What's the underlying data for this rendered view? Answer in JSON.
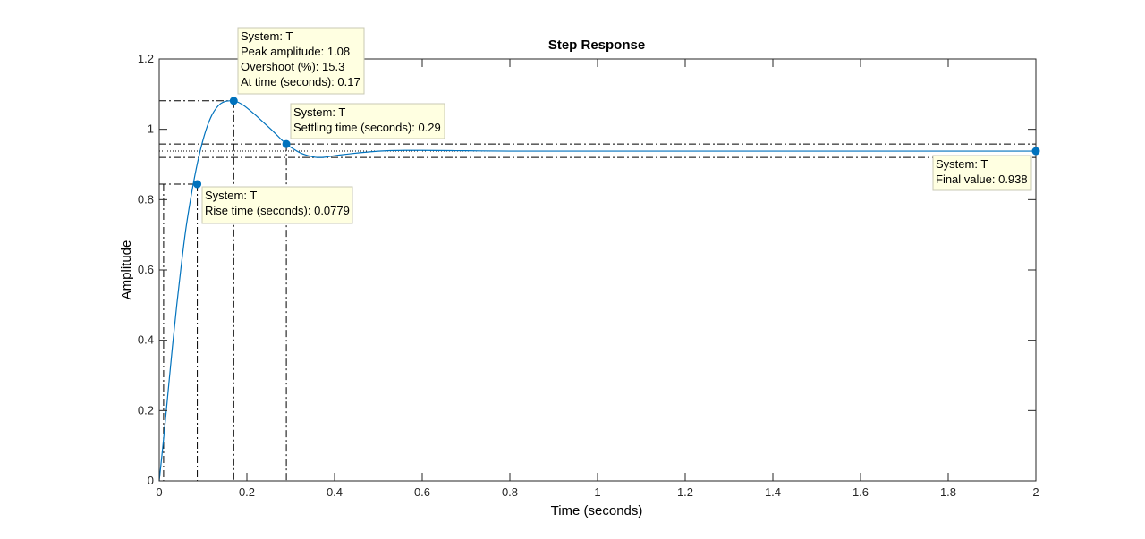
{
  "chart_data": {
    "type": "line",
    "title": "Step Response",
    "xlabel": "Time (seconds)",
    "ylabel": "Amplitude",
    "xlim": [
      0,
      2
    ],
    "ylim": [
      0,
      1.2
    ],
    "xticks": [
      0,
      0.2,
      0.4,
      0.6,
      0.8,
      1,
      1.2,
      1.4,
      1.6,
      1.8,
      2
    ],
    "xtick_labels": [
      "0",
      "0.2",
      "0.4",
      "0.6",
      "0.8",
      "1",
      "1.2",
      "1.4",
      "1.6",
      "1.8",
      "2"
    ],
    "yticks": [
      0,
      0.2,
      0.4,
      0.6,
      0.8,
      1,
      1.2
    ],
    "ytick_labels": [
      "0",
      "0.2",
      "0.4",
      "0.6",
      "0.8",
      "1",
      "1.2"
    ],
    "grid": false,
    "series": [
      {
        "color": "#0072BD",
        "x": [
          0,
          0.01,
          0.02,
          0.03,
          0.04,
          0.05,
          0.06,
          0.07,
          0.08,
          0.09,
          0.1,
          0.11,
          0.12,
          0.13,
          0.14,
          0.15,
          0.16,
          0.17,
          0.18,
          0.19,
          0.2,
          0.22,
          0.24,
          0.26,
          0.28,
          0.29,
          0.3,
          0.32,
          0.34,
          0.36,
          0.38,
          0.4,
          0.44,
          0.48,
          0.52,
          0.56,
          0.6,
          0.7,
          0.8,
          1.0,
          1.2,
          1.4,
          1.6,
          1.8,
          2.0
        ],
        "y": [
          0,
          0.12,
          0.25,
          0.38,
          0.5,
          0.61,
          0.71,
          0.79,
          0.86,
          0.92,
          0.97,
          1.01,
          1.04,
          1.06,
          1.073,
          1.079,
          1.081,
          1.081,
          1.077,
          1.07,
          1.061,
          1.04,
          1.017,
          0.994,
          0.969,
          0.958,
          0.949,
          0.934,
          0.925,
          0.92,
          0.921,
          0.925,
          0.931,
          0.936,
          0.939,
          0.94,
          0.94,
          0.939,
          0.938,
          0.938,
          0.938,
          0.938,
          0.938,
          0.938,
          0.938
        ]
      }
    ],
    "reference_lines": {
      "settling_band_upper": 0.958,
      "settling_band_lower": 0.92,
      "final_value": 0.938,
      "rise_low_time": 0.01,
      "rise_low_value": 0.094,
      "rise_high_value": 0.844
    },
    "annotations": [
      {
        "id": "peak",
        "x": 0.17,
        "y": 1.081,
        "lines": [
          "System: T",
          "Peak amplitude: 1.08",
          "Overshoot (%): 15.3",
          "At time (seconds): 0.17"
        ]
      },
      {
        "id": "settling",
        "x": 0.29,
        "y": 0.958,
        "lines": [
          "System: T",
          "Settling time (seconds): 0.29"
        ]
      },
      {
        "id": "rise",
        "x": 0.0869,
        "y": 0.844,
        "lines": [
          "System: T",
          "Rise time (seconds): 0.0779"
        ]
      },
      {
        "id": "final",
        "x": 2.0,
        "y": 0.938,
        "lines": [
          "System: T",
          "Final value: 0.938"
        ]
      }
    ],
    "marker_color": "#0072BD",
    "tooltip_fill": "#FFFFE1"
  }
}
